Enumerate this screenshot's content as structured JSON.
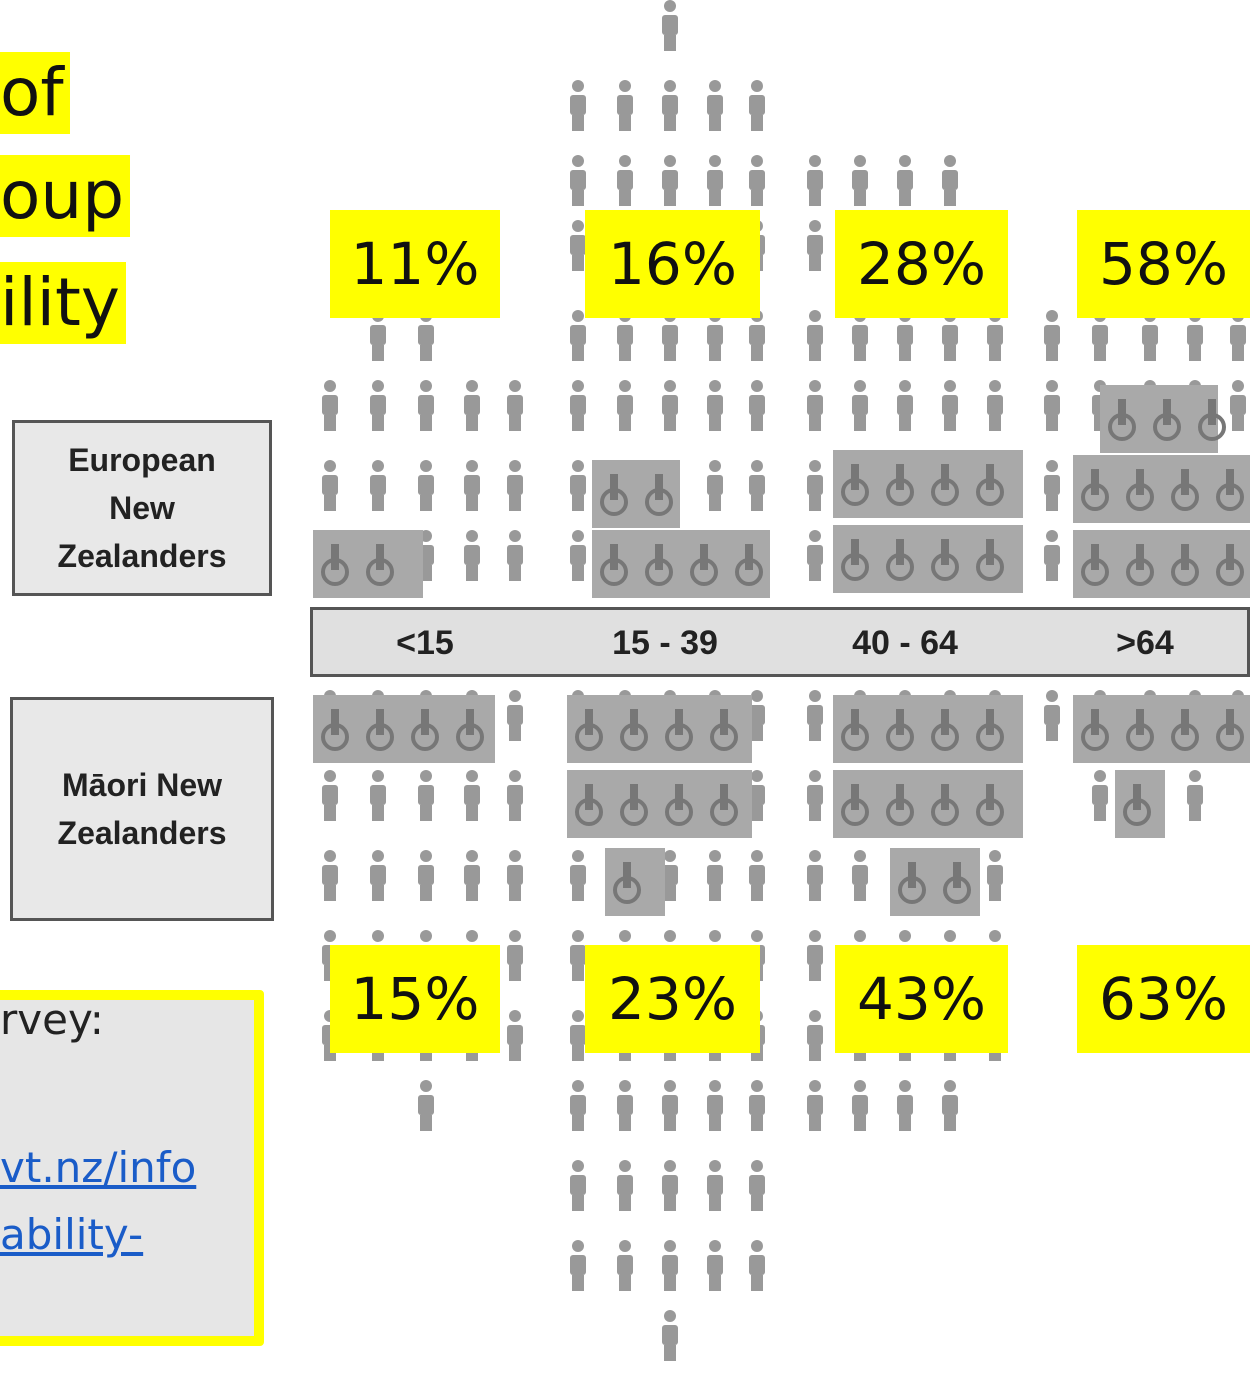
{
  "title_lines": [
    "of",
    "oup",
    "ility"
  ],
  "groups": {
    "european": [
      "European",
      "New",
      "Zealanders"
    ],
    "maori": [
      "Māori New",
      "Zealanders"
    ]
  },
  "age_bands": [
    "<15",
    "15 - 39",
    "40 - 64",
    ">64"
  ],
  "european_percent": [
    "11%",
    "16%",
    "28%",
    "58%"
  ],
  "maori_percent": [
    "15%",
    "23%",
    "43%",
    "63%"
  ],
  "source_lines": [
    "rvey:",
    "vt.nz/info",
    "ability-"
  ]
}
